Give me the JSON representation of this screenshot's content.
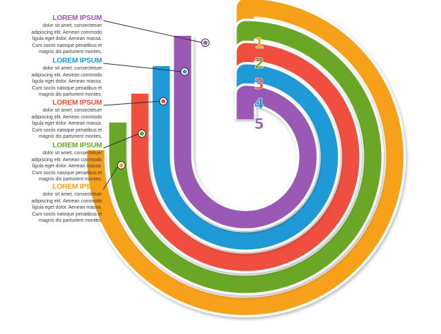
{
  "colors": {
    "item1": "#f7a01a",
    "item2": "#6aa727",
    "item3": "#f04e3e",
    "item4": "#1f9ad6",
    "item5": "#9b59b6"
  },
  "items": [
    {
      "number": "1",
      "title": "LOREM IPSUM",
      "lines": [
        "dolor sit amet, consectetuer",
        "adipiscing elit. Aenean commodo",
        "ligula eget dolor. Aenean massa.",
        "Cum sociis natoque penatibus et",
        "magnis dis parturient montes,"
      ]
    },
    {
      "number": "2",
      "title": "LOREM IPSUM",
      "lines": [
        "dolor sit amet, consectetuer",
        "adipiscing elit. Aenean commodo",
        "ligula eget dolor. Aenean massa.",
        "Cum sociis natoque penatibus et",
        "magnis dis parturient montes,"
      ]
    },
    {
      "number": "3",
      "title": "LOREM IPSUM",
      "lines": [
        "dolor sit amet, consectetuer",
        "adipiscing elit. Aenean commodo",
        "ligula eget dolor. Aenean massa.",
        "Cum sociis natoque penatibus et",
        "magnis dis parturient montes,"
      ]
    },
    {
      "number": "4",
      "title": "LOREM IPSUM",
      "lines": [
        "dolor sit amet, consectetuer",
        "adipiscing elit. Aenean commodo",
        "ligula eget dolor. Aenean massa.",
        "Cum sociis natoque penatibus et",
        "magnis dis parturient montes,"
      ]
    },
    {
      "number": "5",
      "title": "LOREM IPSUM",
      "lines": [
        "dolor sit amet, consectetuer",
        "adipiscing elit. Aenean commodo",
        "ligula eget dolor. Aenean massa.",
        "Cum sociis natoque penatibus et",
        "magnis dis parturient montes,"
      ]
    }
  ]
}
